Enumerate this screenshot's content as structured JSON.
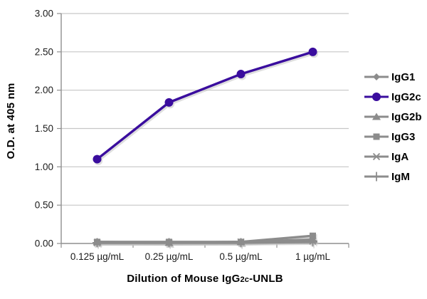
{
  "chart_data": {
    "type": "line",
    "title": "",
    "xlabel": "Dilution of Mouse IgG2c-UNLB",
    "xlabel_parts": {
      "prefix": "Dilution of Mouse IgG",
      "sub": "2c",
      "suffix": "-UNLB"
    },
    "ylabel": "O.D. at 405 nm",
    "categories": [
      "0.125 µg/mL",
      "0.25 µg/mL",
      "0.5 µg/mL",
      "1 µg/mL"
    ],
    "ylim": [
      0,
      3.0
    ],
    "ytick_step": 0.5,
    "ytick_labels": [
      "0.00",
      "0.50",
      "1.00",
      "1.50",
      "2.00",
      "2.50",
      "3.00"
    ],
    "grid": "horizontal",
    "legend_position": "right",
    "series": [
      {
        "name": "IgG1",
        "marker": "diamond",
        "color": "#8C8C8C",
        "values": [
          0.01,
          0.01,
          0.01,
          0.04
        ]
      },
      {
        "name": "IgG2c",
        "marker": "circle",
        "color": "#3A0D9E",
        "values": [
          1.1,
          1.84,
          2.21,
          2.5
        ]
      },
      {
        "name": "IgG2b",
        "marker": "triangle",
        "color": "#8C8C8C",
        "values": [
          0.02,
          0.01,
          0.02,
          0.05
        ]
      },
      {
        "name": "IgG3",
        "marker": "square",
        "color": "#8C8C8C",
        "values": [
          0.02,
          0.02,
          0.02,
          0.1
        ]
      },
      {
        "name": "IgA",
        "marker": "star",
        "color": "#8C8C8C",
        "values": [
          0.01,
          0.01,
          0.02,
          0.03
        ]
      },
      {
        "name": "IgM",
        "marker": "plus",
        "color": "#8C8C8C",
        "values": [
          0.01,
          0.01,
          0.01,
          0.02
        ]
      }
    ],
    "colors": {
      "grid": "#C6C6C6",
      "axis": "#8F8F8F",
      "text": "#1A1A1A",
      "shadow": "#BFBFBF"
    }
  }
}
